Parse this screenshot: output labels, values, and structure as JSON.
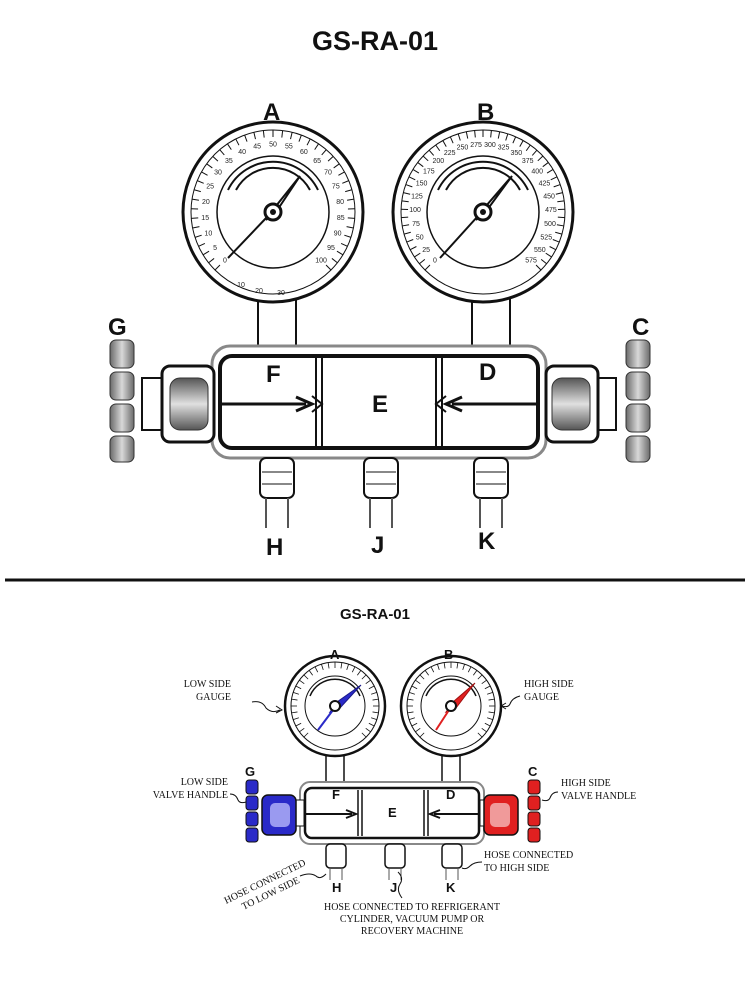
{
  "title": "GS-RA-01",
  "labels": {
    "A": "A",
    "B": "B",
    "C": "C",
    "D": "D",
    "E": "E",
    "F": "F",
    "G": "G",
    "H": "H",
    "J": "J",
    "K": "K"
  },
  "gauges": {
    "low_scale": [
      "0",
      "5",
      "10",
      "15",
      "20",
      "25",
      "30",
      "35",
      "40",
      "45",
      "50",
      "55",
      "60",
      "65",
      "70",
      "75",
      "80",
      "85",
      "90",
      "95",
      "100"
    ],
    "low_inner": [
      "10",
      "20",
      "30"
    ],
    "high_scale": [
      "0",
      "25",
      "50",
      "75",
      "100",
      "125",
      "150",
      "175",
      "200",
      "225",
      "250",
      "275",
      "300",
      "325",
      "350",
      "375",
      "400",
      "425",
      "450",
      "475",
      "500",
      "525",
      "550",
      "575"
    ]
  },
  "annotations": {
    "low_gauge_1": "LOW SIDE",
    "low_gauge_2": "GAUGE",
    "high_gauge_1": "HIGH SIDE",
    "high_gauge_2": "GAUGE",
    "low_valve_1": "LOW SIDE",
    "low_valve_2": "VALVE HANDLE",
    "high_valve_1": "HIGH SIDE",
    "high_valve_2": "VALVE HANDLE",
    "hose_high_1": "HOSE CONNECTED",
    "hose_high_2": "TO HIGH SIDE",
    "hose_low_1": "HOSE CONNECTED",
    "hose_low_2": "TO LOW SIDE",
    "hose_j_1": "HOSE CONNECTED TO REFRIGERANT",
    "hose_j_2": "CYLINDER, VACUUM PUMP OR",
    "hose_j_3": "RECOVERY MACHINE"
  },
  "colors": {
    "low_side": "#2a2ac8",
    "high_side": "#e02020",
    "line": "#111111"
  }
}
